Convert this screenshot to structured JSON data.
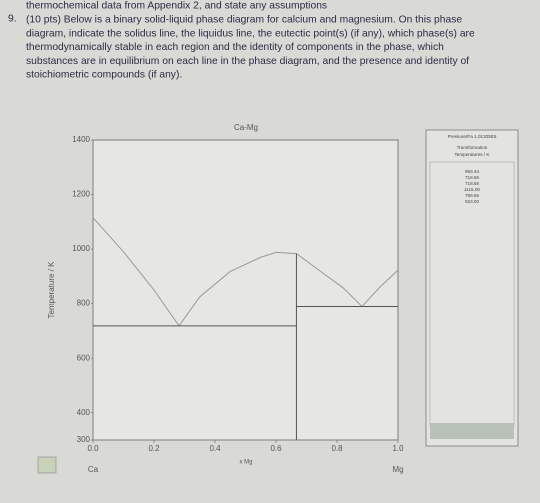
{
  "document": {
    "lines": [
      "thermochemical data from Appendix 2, and state any assumptions",
      "(10 pts) Below is a binary solid-liquid phase diagram for calcium and magnesium.  On this phase",
      "diagram, indicate the solidus line, the liquidus line, the eutectic point(s) (if any), which phase(s) are",
      "thermodynamically stable in each region and the identity of components in the phase, which",
      "substances are in equilibrium on each line in the phase diagram, and the presence and identity of",
      "stoichiometric compounds (if any)."
    ],
    "number": "9.",
    "panel": {
      "pressure": "Pressure/Pa  1.01325E5",
      "heading1": "Transformation",
      "heading2": "Temperatures / K",
      "values": [
        "983.44",
        "718.65",
        "718.66",
        "1115.00",
        "789.65",
        "923.00"
      ]
    }
  },
  "chart_data": {
    "type": "line",
    "title": "Ca-Mg",
    "x_label": "x Mg",
    "y_label": "Temperature / K",
    "x_left_label": "Ca",
    "x_right_label": "Mg",
    "xlim": [
      0,
      1
    ],
    "ylim": [
      300,
      1400
    ],
    "xticks": [
      {
        "value": 0,
        "label": "0.0"
      },
      0.2,
      0.4,
      0.6,
      0.8,
      {
        "value": 1,
        "label": "1.0"
      }
    ],
    "yticks": [
      300,
      400,
      600,
      800,
      1000,
      1200,
      1400
    ],
    "series": [
      {
        "color": "#999999",
        "x": [
          0,
          0.1,
          0.2,
          0.282
        ],
        "values": [
          1115,
          990,
          850,
          718.65
        ]
      },
      {
        "color": "#999999",
        "x": [
          0.282,
          0.35,
          0.45,
          0.55,
          0.6,
          0.667
        ],
        "values": [
          718.65,
          825,
          918,
          970,
          988,
          983.44
        ]
      },
      {
        "color": "#999999",
        "x": [
          0.667,
          0.75,
          0.82,
          0.882,
          0.94,
          1
        ],
        "values": [
          983.44,
          915,
          858,
          789.65,
          860,
          923
        ]
      },
      {
        "color": "#555555",
        "x": [
          0,
          0.667
        ],
        "values": [
          718.65,
          718.65
        ]
      },
      {
        "color": "#555555",
        "x": [
          0.667,
          1
        ],
        "values": [
          789.65,
          789.65
        ]
      },
      {
        "color": "#555555",
        "x": [
          0.667,
          0.667
        ],
        "values": [
          300,
          983.44
        ]
      }
    ]
  }
}
